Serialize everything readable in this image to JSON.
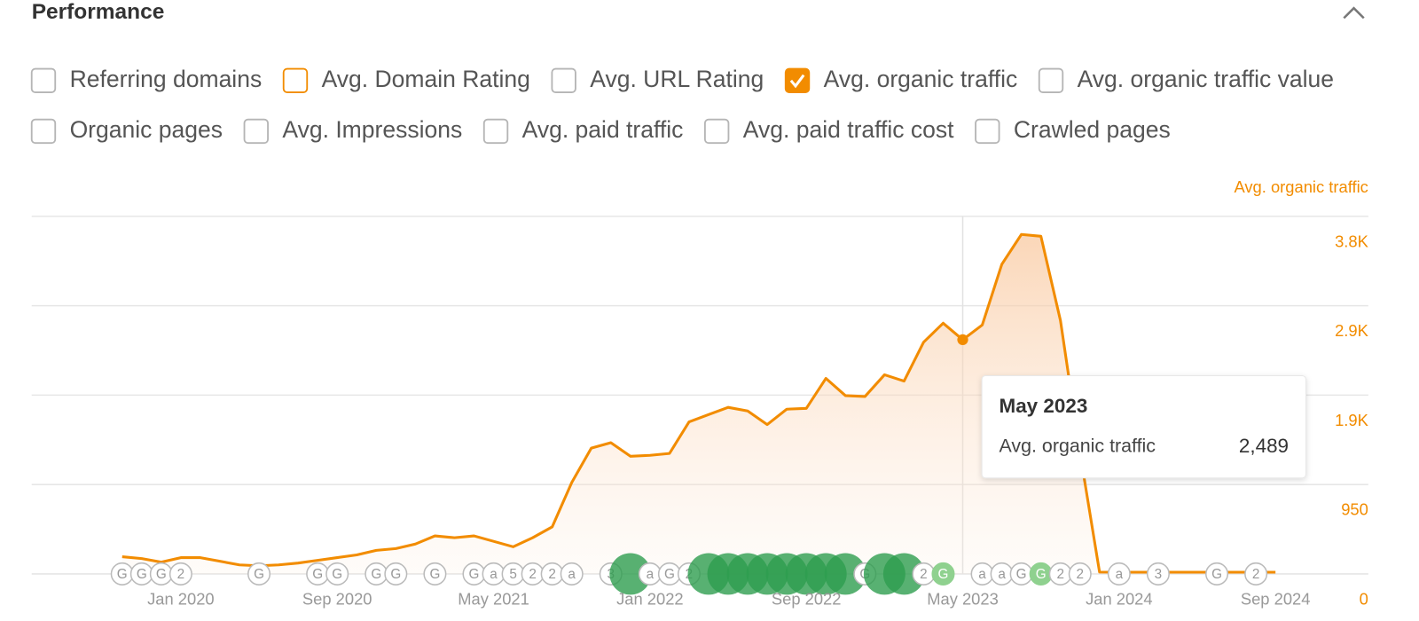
{
  "header": {
    "title": "Performance"
  },
  "metrics": [
    [
      {
        "label": "Referring domains",
        "checked": false
      },
      {
        "label": "Avg. Domain Rating",
        "checked": false,
        "color": "#f28c00"
      },
      {
        "label": "Avg. URL Rating",
        "checked": false
      },
      {
        "label": "Avg. organic traffic",
        "checked": true,
        "color": "#f28c00"
      },
      {
        "label": "Avg. organic traffic value",
        "checked": false
      }
    ],
    [
      {
        "label": "Organic pages",
        "checked": false
      },
      {
        "label": "Avg. Impressions",
        "checked": false
      },
      {
        "label": "Avg. paid traffic",
        "checked": false
      },
      {
        "label": "Avg. paid traffic cost",
        "checked": false
      },
      {
        "label": "Crawled pages",
        "checked": false
      }
    ]
  ],
  "chart_data": {
    "type": "area",
    "y_axis_label": "Avg. organic traffic",
    "x": [
      "2019-10",
      "2019-11",
      "2019-12",
      "2020-01",
      "2020-02",
      "2020-03",
      "2020-04",
      "2020-05",
      "2020-06",
      "2020-07",
      "2020-08",
      "2020-09",
      "2020-10",
      "2020-11",
      "2020-12",
      "2021-01",
      "2021-02",
      "2021-03",
      "2021-04",
      "2021-05",
      "2021-06",
      "2021-07",
      "2021-08",
      "2021-09",
      "2021-10",
      "2021-11",
      "2021-12",
      "2022-01",
      "2022-02",
      "2022-03",
      "2022-04",
      "2022-05",
      "2022-06",
      "2022-07",
      "2022-08",
      "2022-09",
      "2022-10",
      "2022-11",
      "2022-12",
      "2023-01",
      "2023-02",
      "2023-03",
      "2023-04",
      "2023-05",
      "2023-06",
      "2023-07",
      "2023-08",
      "2023-09",
      "2023-10",
      "2023-11",
      "2023-12",
      "2024-01",
      "2024-02",
      "2024-03",
      "2024-04",
      "2024-05",
      "2024-06",
      "2024-07",
      "2024-08",
      "2024-09"
    ],
    "series": [
      {
        "name": "Avg. organic traffic",
        "color": "#f28c00",
        "values": [
          183,
          164,
          125,
          173,
          173,
          135,
          96,
          87,
          96,
          115,
          144,
          173,
          202,
          250,
          269,
          317,
          404,
          385,
          404,
          346,
          289,
          385,
          500,
          972,
          1337,
          1395,
          1251,
          1260,
          1280,
          1616,
          1693,
          1770,
          1732,
          1587,
          1751,
          1760,
          2078,
          1895,
          1886,
          2116,
          2049,
          2463,
          2665,
          2489,
          2646,
          3290,
          3608,
          3588,
          2694,
          1289,
          19,
          18,
          18,
          18,
          18,
          18,
          18,
          18,
          18,
          18
        ]
      }
    ],
    "ylim": [
      0,
      3800
    ],
    "yticks": [
      0,
      950,
      {
        "value": 1900,
        "label": "1.9K"
      },
      {
        "value": 2850,
        "label": "2.9K"
      },
      {
        "value": 3800,
        "label": "3.8K"
      }
    ],
    "xticks": [
      {
        "value": "2020-01",
        "label": "Jan 2020"
      },
      {
        "value": "2020-09",
        "label": "Sep 2020"
      },
      {
        "value": "2021-05",
        "label": "May 2021"
      },
      {
        "value": "2022-01",
        "label": "Jan 2022"
      },
      {
        "value": "2022-09",
        "label": "Sep 2022"
      },
      {
        "value": "2023-05",
        "label": "May 2023"
      },
      {
        "value": "2024-01",
        "label": "Jan 2024"
      },
      {
        "value": "2024-09",
        "label": "Sep 2024"
      }
    ],
    "grid": true,
    "tooltip": {
      "x": "2023-05",
      "title": "May 2023",
      "label": "Avg. organic traffic",
      "value": "2,489"
    },
    "annotations": [
      {
        "x": "2019-10",
        "label": "G"
      },
      {
        "x": "2019-11",
        "label": "G"
      },
      {
        "x": "2019-12",
        "label": "G"
      },
      {
        "x": "2020-01",
        "label": "2"
      },
      {
        "x": "2020-05",
        "label": "G"
      },
      {
        "x": "2020-08",
        "label": "G"
      },
      {
        "x": "2020-09",
        "label": "G"
      },
      {
        "x": "2020-11",
        "label": "G"
      },
      {
        "x": "2020-12",
        "label": "G"
      },
      {
        "x": "2021-02",
        "label": "G"
      },
      {
        "x": "2021-04",
        "label": "G"
      },
      {
        "x": "2021-05",
        "label": "a"
      },
      {
        "x": "2021-06",
        "label": "5"
      },
      {
        "x": "2021-07",
        "label": "2"
      },
      {
        "x": "2021-08",
        "label": "2"
      },
      {
        "x": "2021-09",
        "label": "a"
      },
      {
        "x": "2021-11",
        "label": "3"
      },
      {
        "x": "2021-12",
        "label": null,
        "kind": "major"
      },
      {
        "x": "2022-01",
        "label": "a"
      },
      {
        "x": "2022-02",
        "label": "G"
      },
      {
        "x": "2022-03",
        "label": "2"
      },
      {
        "x": "2022-04",
        "label": null,
        "kind": "major"
      },
      {
        "x": "2022-05",
        "label": null,
        "kind": "major"
      },
      {
        "x": "2022-06",
        "label": null,
        "kind": "major"
      },
      {
        "x": "2022-07",
        "label": null,
        "kind": "major"
      },
      {
        "x": "2022-08",
        "label": null,
        "kind": "major"
      },
      {
        "x": "2022-09",
        "label": null,
        "kind": "major"
      },
      {
        "x": "2022-10",
        "label": null,
        "kind": "major"
      },
      {
        "x": "2022-11",
        "label": null,
        "kind": "major"
      },
      {
        "x": "2022-12",
        "label": "G"
      },
      {
        "x": "2023-01",
        "label": null,
        "kind": "major"
      },
      {
        "x": "2023-02",
        "label": null,
        "kind": "major"
      },
      {
        "x": "2023-03",
        "label": "2"
      },
      {
        "x": "2023-04",
        "label": "G",
        "kind": "light"
      },
      {
        "x": "2023-06",
        "label": "a"
      },
      {
        "x": "2023-07",
        "label": "a"
      },
      {
        "x": "2023-08",
        "label": "G"
      },
      {
        "x": "2023-09",
        "label": "G",
        "kind": "light"
      },
      {
        "x": "2023-10",
        "label": "2"
      },
      {
        "x": "2023-11",
        "label": "2"
      },
      {
        "x": "2024-01",
        "label": "a"
      },
      {
        "x": "2024-03",
        "label": "3"
      },
      {
        "x": "2024-06",
        "label": "G"
      },
      {
        "x": "2024-08",
        "label": "2"
      }
    ]
  }
}
